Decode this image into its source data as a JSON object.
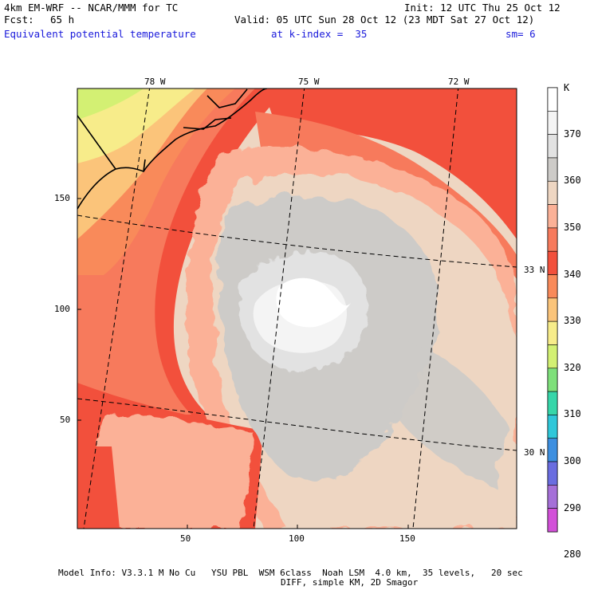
{
  "header": {
    "model_title": "4km EM-WRF -- NCAR/MMM for TC",
    "init": "Init: 12 UTC Thu 25 Oct 12",
    "fcst_label": "Fcst:",
    "fcst_value": "65 h",
    "valid": "Valid: 05 UTC Sun 28 Oct 12 (23 MDT Sat 27 Oct 12)",
    "field_name": "Equivalent potential temperature",
    "level": "at k-index =  35",
    "smoothing": "sm= 6"
  },
  "map": {
    "longitude_labels": [
      "78 W",
      "75 W",
      "72 W"
    ],
    "latitude_labels": [
      "33 N",
      "30 N"
    ],
    "x_axis_ticks": [
      "50",
      "100",
      "150"
    ],
    "y_axis_ticks": [
      "150",
      "100",
      "50"
    ],
    "grid_range": {
      "x": [
        0,
        200
      ],
      "y": [
        0,
        200
      ]
    }
  },
  "colorbar": {
    "unit": "K",
    "levels": [
      "370",
      "360",
      "350",
      "340",
      "330",
      "320",
      "310",
      "300",
      "290",
      "280"
    ],
    "colors": [
      "#ffffff",
      "#f4f4f4",
      "#e2e2e2",
      "#cdcbc8",
      "#eed6c2",
      "#fbb197",
      "#f77a5c",
      "#f2503c",
      "#f98a5a",
      "#fbc47a",
      "#f7ec8a",
      "#d3f073",
      "#7ee07a",
      "#36d6a9",
      "#2fc7d9",
      "#3d8fe0",
      "#6a6de0",
      "#a570d8",
      "#d250d8"
    ]
  },
  "footer": {
    "line1": "Model Info: V3.3.1 M No Cu   YSU PBL  WSM 6class  Noah LSM  4.0 km,  35 levels,   20 sec",
    "line2": "DIFF, simple KM, 2D Smagor"
  }
}
